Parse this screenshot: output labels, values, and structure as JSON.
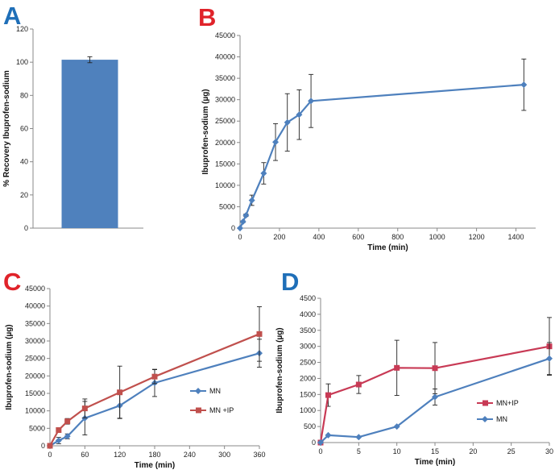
{
  "colors": {
    "blue": "#4e80bd",
    "red": "#c0504d",
    "crimson": "#c83a55",
    "panel_a": "#1f6fb8",
    "panel_b": "#e0232a",
    "panel_c": "#e0232a",
    "panel_d": "#1f6fb8",
    "bar": "#4f81bd"
  },
  "chart_data": [
    {
      "panel": "A",
      "type": "bar",
      "title": "",
      "xlabel": "",
      "ylabel": "% Recovery Ibuprofen-sodium",
      "ylim": [
        0,
        120
      ],
      "yticks": [
        0,
        20,
        40,
        60,
        80,
        100,
        120
      ],
      "categories": [
        ""
      ],
      "values": [
        101.5
      ],
      "errors": [
        1.8
      ]
    },
    {
      "panel": "B",
      "type": "line",
      "title": "",
      "xlabel": "Time (min)",
      "ylabel": "Ibuprofen-sodium (µg)",
      "xlim": [
        0,
        1500
      ],
      "ylim": [
        0,
        45000
      ],
      "xticks": [
        0,
        200,
        400,
        600,
        800,
        1000,
        1200,
        1400
      ],
      "yticks": [
        0,
        5000,
        10000,
        15000,
        20000,
        25000,
        30000,
        35000,
        40000,
        45000
      ],
      "series": [
        {
          "name": "",
          "color": "#4e80bd",
          "x": [
            0,
            15,
            30,
            60,
            120,
            180,
            240,
            300,
            360,
            1440
          ],
          "y": [
            0,
            1500,
            3000,
            6500,
            12800,
            20100,
            24700,
            26500,
            29700,
            33500
          ],
          "err": [
            0,
            200,
            300,
            1200,
            2500,
            4300,
            6700,
            5800,
            6200,
            6000
          ]
        }
      ]
    },
    {
      "panel": "C",
      "type": "line",
      "title": "",
      "xlabel": "Time (min)",
      "ylabel": "Ibuprofen-sodium (µg)",
      "xlim": [
        0,
        360
      ],
      "ylim": [
        0,
        45000
      ],
      "xticks": [
        0,
        60,
        120,
        180,
        240,
        300,
        360
      ],
      "yticks": [
        0,
        5000,
        10000,
        15000,
        20000,
        25000,
        30000,
        35000,
        40000,
        45000
      ],
      "legend": [
        "MN",
        "MN +IP"
      ],
      "series": [
        {
          "name": "MN",
          "color": "#4e80bd",
          "x": [
            0,
            15,
            30,
            60,
            120,
            180,
            360
          ],
          "y": [
            0,
            1500,
            2700,
            7900,
            11500,
            18000,
            26500
          ],
          "err": [
            0,
            900,
            700,
            4800,
            3600,
            3900,
            4000
          ]
        },
        {
          "name": "MN +IP",
          "color": "#c0504d",
          "x": [
            0,
            15,
            30,
            60,
            120,
            180,
            360
          ],
          "y": [
            0,
            4500,
            7000,
            10700,
            15300,
            19800,
            32000
          ],
          "err": [
            0,
            500,
            800,
            2700,
            7500,
            2000,
            7800
          ]
        }
      ]
    },
    {
      "panel": "D",
      "type": "line",
      "title": "",
      "xlabel": "Time (min)",
      "ylabel": "Ibuprofen-sodium (µg)",
      "xlim": [
        0,
        30
      ],
      "ylim": [
        0,
        4500
      ],
      "xticks": [
        0,
        5,
        10,
        15,
        20,
        25,
        30
      ],
      "yticks": [
        0,
        500,
        1000,
        1500,
        2000,
        2500,
        3000,
        3500,
        4000,
        4500
      ],
      "legend": [
        "MN+IP",
        "MN"
      ],
      "series": [
        {
          "name": "MN+IP",
          "color": "#c83a55",
          "x": [
            0,
            1,
            5,
            10,
            15,
            30
          ],
          "y": [
            0,
            1480,
            1810,
            2330,
            2320,
            3000
          ],
          "err": [
            0,
            350,
            280,
            860,
            800,
            900
          ]
        },
        {
          "name": "MN",
          "color": "#4e80bd",
          "x": [
            0,
            1,
            5,
            10,
            15,
            30
          ],
          "y": [
            0,
            230,
            170,
            500,
            1420,
            2620
          ],
          "err": [
            0,
            0,
            0,
            0,
            250,
            500
          ]
        }
      ]
    }
  ]
}
